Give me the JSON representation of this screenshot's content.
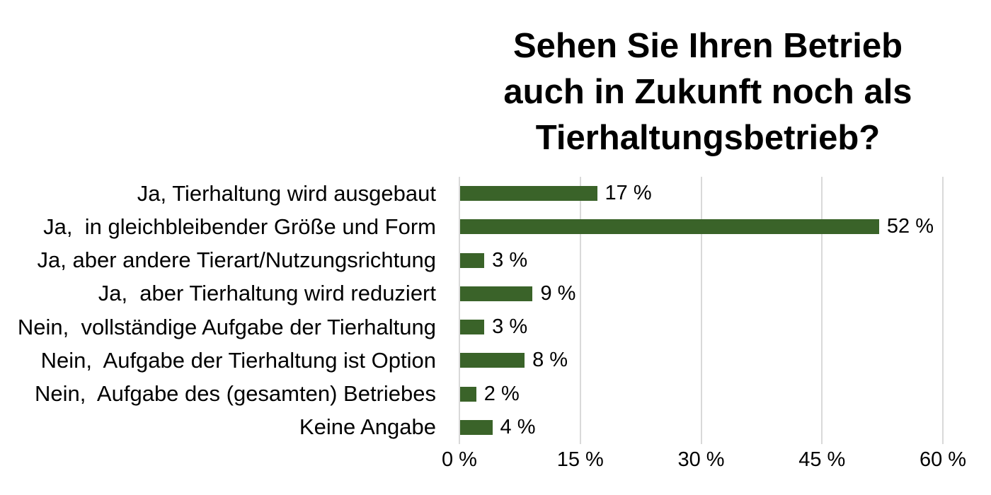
{
  "chart_data": {
    "type": "bar",
    "orientation": "horizontal",
    "title": "Sehen Sie Ihren Betrieb auch in Zukunft noch als Tierhaltungsbetrieb?",
    "title_lines": [
      "Sehen Sie Ihren Betrieb",
      "auch in Zukunft noch als",
      "Tierhaltungsbetrieb?"
    ],
    "categories": [
      "Ja, Tierhaltung wird ausgebaut",
      "Ja,  in gleichbleibender Größe und Form",
      "Ja, aber andere Tierart/Nutzungsrichtung",
      "Ja,  aber Tierhaltung wird reduziert",
      "Nein,  vollständige Aufgabe der Tierhaltung",
      "Nein,  Aufgabe der Tierhaltung ist Option",
      "Nein,  Aufgabe des (gesamten) Betriebes",
      "Keine Angabe"
    ],
    "values": [
      17,
      52,
      3,
      9,
      3,
      8,
      2,
      4
    ],
    "value_labels": [
      "17 %",
      "52 %",
      "3 %",
      "9 %",
      "3 %",
      "8 %",
      "2 %",
      "4 %"
    ],
    "xlabel": "",
    "ylabel": "",
    "xlim": [
      0,
      60
    ],
    "x_tick_values": [
      0,
      15,
      30,
      45,
      60
    ],
    "x_tick_labels": [
      "0 %",
      "15 %",
      "30 %",
      "45 %",
      "60 %"
    ],
    "grid": "vertical-only",
    "legend": "none",
    "bar_color": "#3a6329",
    "gridline_color": "#d9d9d9",
    "text_color": "#000000",
    "background_color": "#ffffff"
  }
}
